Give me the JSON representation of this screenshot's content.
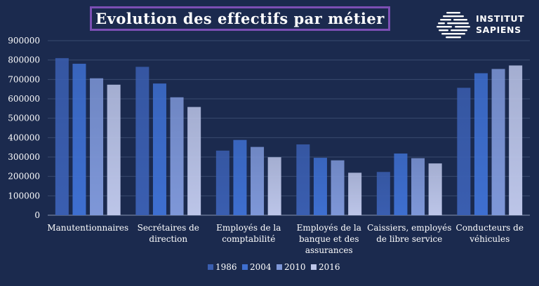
{
  "title": "Evolution des effectifs par métier",
  "logo": {
    "line1": "INSTITUT",
    "line2": "SAPIENS"
  },
  "colors": {
    "background": "#1b2a4e",
    "title_border": "#7c4fb4",
    "series": [
      "#3a5eb0",
      "#3e6fd0",
      "#7e97d8",
      "#bcc5e8"
    ]
  },
  "chart_data": {
    "type": "bar",
    "title": "Evolution des effectifs par métier",
    "categories": [
      "Manutentionnaires",
      "Secrétaires de direction",
      "Employés de la comptabilité",
      "Employés de la banque et des assurances",
      "Caissiers, employés de libre service",
      "Conducteurs de véhicules"
    ],
    "category_lines": [
      [
        "Manutentionnaires"
      ],
      [
        "Secrétaires de",
        "direction"
      ],
      [
        "Employés de la",
        "comptabilité"
      ],
      [
        "Employés de la",
        "banque et des",
        "assurances"
      ],
      [
        "Caissiers, employés",
        "de libre service"
      ],
      [
        "Conducteurs de",
        "véhicules"
      ]
    ],
    "series": [
      {
        "name": "1986",
        "values": [
          810000,
          765000,
          333000,
          365000,
          223000,
          657000
        ]
      },
      {
        "name": "2004",
        "values": [
          781000,
          679000,
          388000,
          296000,
          318000,
          732000
        ]
      },
      {
        "name": "2010",
        "values": [
          706000,
          608000,
          352000,
          283000,
          294000,
          754000
        ]
      },
      {
        "name": "2016",
        "values": [
          673000,
          558000,
          299000,
          219000,
          267000,
          772000
        ]
      }
    ],
    "ylim": [
      0,
      900000
    ],
    "yticks": [
      "0",
      "100000",
      "200000",
      "300000",
      "400000",
      "500000",
      "600000",
      "700000",
      "800000",
      "900000"
    ],
    "grid": true,
    "legend_position": "bottom"
  }
}
